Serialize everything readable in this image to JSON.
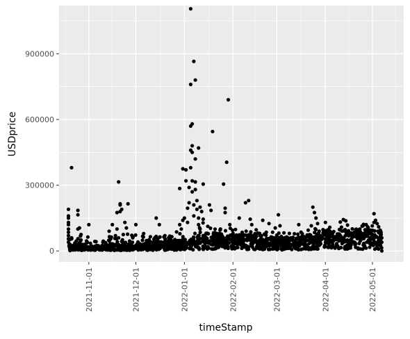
{
  "chart_data": {
    "type": "scatter",
    "xlabel": "timeStamp",
    "ylabel": "USDprice",
    "x_axis_type": "date",
    "xlim": [
      "2021-10-13",
      "2022-05-21"
    ],
    "ylim": [
      -50000,
      1120000
    ],
    "x_ticks": [
      "2021-11-01",
      "2021-12-01",
      "2022-01-01",
      "2022-02-01",
      "2022-03-01",
      "2022-04-01",
      "2022-05-01"
    ],
    "y_ticks": [
      0,
      300000,
      600000,
      900000
    ],
    "y_tick_labels": [
      "0",
      "300000",
      "600000",
      "900000"
    ],
    "grid": true,
    "background": "#ebebeb",
    "point_color": "#000000",
    "series": [
      {
        "points": [
          [
            "2021-10-19",
            190000
          ],
          [
            "2021-10-19",
            160000
          ],
          [
            "2021-10-19",
            150000
          ],
          [
            "2021-10-19",
            130000
          ],
          [
            "2021-10-19",
            120000
          ],
          [
            "2021-10-19",
            100000
          ],
          [
            "2021-10-19",
            85000
          ],
          [
            "2021-10-19",
            70000
          ],
          [
            "2021-10-19",
            55000
          ],
          [
            "2021-10-19",
            40000
          ],
          [
            "2021-10-20",
            30000
          ],
          [
            "2021-10-20",
            20000
          ],
          [
            "2021-10-20",
            10000
          ],
          [
            "2021-10-20",
            5000
          ],
          [
            "2021-10-20",
            2000
          ],
          [
            "2021-10-21",
            380000
          ],
          [
            "2021-10-21",
            60000
          ],
          [
            "2021-10-22",
            25000
          ],
          [
            "2021-10-23",
            12000
          ],
          [
            "2021-10-24",
            45000
          ],
          [
            "2021-10-25",
            185000
          ],
          [
            "2021-10-25",
            165000
          ],
          [
            "2021-10-25",
            100000
          ],
          [
            "2021-10-26",
            105000
          ],
          [
            "2021-10-27",
            75000
          ],
          [
            "2021-10-27",
            50000
          ],
          [
            "2021-10-28",
            30000
          ],
          [
            "2021-10-29",
            15000
          ],
          [
            "2021-10-30",
            8000
          ],
          [
            "2021-10-31",
            40000
          ],
          [
            "2021-11-01",
            120000
          ],
          [
            "2021-11-02",
            35000
          ],
          [
            "2021-11-03",
            20000
          ],
          [
            "2021-11-04",
            10000
          ],
          [
            "2021-11-05",
            5000
          ],
          [
            "2021-11-06",
            25000
          ],
          [
            "2021-11-08",
            15000
          ],
          [
            "2021-11-10",
            40000
          ],
          [
            "2021-11-11",
            8000
          ],
          [
            "2021-11-12",
            22000
          ],
          [
            "2021-11-14",
            90000
          ],
          [
            "2021-11-15",
            55000
          ],
          [
            "2021-11-16",
            120000
          ],
          [
            "2021-11-17",
            30000
          ],
          [
            "2021-11-18",
            70000
          ],
          [
            "2021-11-19",
            175000
          ],
          [
            "2021-11-19",
            100000
          ],
          [
            "2021-11-20",
            315000
          ],
          [
            "2021-11-20",
            60000
          ],
          [
            "2021-11-21",
            210000
          ],
          [
            "2021-11-21",
            215000
          ],
          [
            "2021-11-21",
            180000
          ],
          [
            "2021-11-22",
            190000
          ],
          [
            "2021-11-23",
            75000
          ],
          [
            "2021-11-24",
            130000
          ],
          [
            "2021-11-25",
            105000
          ],
          [
            "2021-11-26",
            215000
          ],
          [
            "2021-11-27",
            45000
          ],
          [
            "2021-11-28",
            25000
          ],
          [
            "2021-11-29",
            60000
          ],
          [
            "2021-12-01",
            120000
          ],
          [
            "2021-12-02",
            20000
          ],
          [
            "2021-12-04",
            10000
          ],
          [
            "2021-12-06",
            30000
          ],
          [
            "2021-12-08",
            15000
          ],
          [
            "2021-12-10",
            40000
          ],
          [
            "2021-12-12",
            25000
          ],
          [
            "2021-12-14",
            150000
          ],
          [
            "2021-12-15",
            45000
          ],
          [
            "2021-12-16",
            120000
          ],
          [
            "2021-12-18",
            30000
          ],
          [
            "2021-12-20",
            10000
          ],
          [
            "2021-12-22",
            50000
          ],
          [
            "2021-12-24",
            65000
          ],
          [
            "2021-12-26",
            20000
          ],
          [
            "2021-12-28",
            35000
          ],
          [
            "2021-12-29",
            285000
          ],
          [
            "2021-12-29",
            120000
          ],
          [
            "2021-12-30",
            100000
          ],
          [
            "2021-12-31",
            140000
          ],
          [
            "2021-12-31",
            375000
          ],
          [
            "2022-01-01",
            150000
          ],
          [
            "2022-01-02",
            370000
          ],
          [
            "2022-01-02",
            320000
          ],
          [
            "2022-01-03",
            195000
          ],
          [
            "2022-01-03",
            130000
          ],
          [
            "2022-01-04",
            290000
          ],
          [
            "2022-01-04",
            220000
          ],
          [
            "2022-01-05",
            460000
          ],
          [
            "2022-01-05",
            380000
          ],
          [
            "2022-01-05",
            570000
          ],
          [
            "2022-01-05",
            760000
          ],
          [
            "2022-01-05",
            1105000
          ],
          [
            "2022-01-06",
            580000
          ],
          [
            "2022-01-06",
            480000
          ],
          [
            "2022-01-06",
            450000
          ],
          [
            "2022-01-06",
            320000
          ],
          [
            "2022-01-06",
            270000
          ],
          [
            "2022-01-07",
            865000
          ],
          [
            "2022-01-07",
            210000
          ],
          [
            "2022-01-07",
            160000
          ],
          [
            "2022-01-08",
            780000
          ],
          [
            "2022-01-08",
            420000
          ],
          [
            "2022-01-08",
            315000
          ],
          [
            "2022-01-08",
            280000
          ],
          [
            "2022-01-09",
            230000
          ],
          [
            "2022-01-09",
            190000
          ],
          [
            "2022-01-10",
            470000
          ],
          [
            "2022-01-10",
            150000
          ],
          [
            "2022-01-10",
            120000
          ],
          [
            "2022-01-11",
            200000
          ],
          [
            "2022-01-11",
            100000
          ],
          [
            "2022-01-12",
            180000
          ],
          [
            "2022-01-13",
            305000
          ],
          [
            "2022-01-13",
            145000
          ],
          [
            "2022-01-15",
            60000
          ],
          [
            "2022-01-17",
            210000
          ],
          [
            "2022-01-18",
            185000
          ],
          [
            "2022-01-19",
            545000
          ],
          [
            "2022-01-20",
            50000
          ],
          [
            "2022-01-22",
            30000
          ],
          [
            "2022-01-24",
            100000
          ],
          [
            "2022-01-26",
            305000
          ],
          [
            "2022-01-27",
            195000
          ],
          [
            "2022-01-27",
            175000
          ],
          [
            "2022-01-28",
            405000
          ],
          [
            "2022-01-29",
            690000
          ],
          [
            "2022-01-30",
            120000
          ],
          [
            "2022-02-01",
            80000
          ],
          [
            "2022-02-03",
            60000
          ],
          [
            "2022-02-05",
            150000
          ],
          [
            "2022-02-07",
            50000
          ],
          [
            "2022-02-09",
            220000
          ],
          [
            "2022-02-11",
            230000
          ],
          [
            "2022-02-12",
            145000
          ],
          [
            "2022-02-13",
            120000
          ],
          [
            "2022-02-15",
            70000
          ],
          [
            "2022-02-18",
            50000
          ],
          [
            "2022-02-20",
            140000
          ],
          [
            "2022-02-22",
            30000
          ],
          [
            "2022-02-24",
            125000
          ],
          [
            "2022-02-26",
            40000
          ],
          [
            "2022-02-28",
            105000
          ],
          [
            "2022-03-02",
            165000
          ],
          [
            "2022-03-03",
            115000
          ],
          [
            "2022-03-06",
            60000
          ],
          [
            "2022-03-09",
            80000
          ],
          [
            "2022-03-12",
            40000
          ],
          [
            "2022-03-15",
            120000
          ],
          [
            "2022-03-18",
            30000
          ],
          [
            "2022-03-21",
            95000
          ],
          [
            "2022-03-23",
            115000
          ],
          [
            "2022-03-24",
            200000
          ],
          [
            "2022-03-25",
            175000
          ],
          [
            "2022-03-26",
            150000
          ],
          [
            "2022-03-27",
            125000
          ],
          [
            "2022-03-28",
            90000
          ],
          [
            "2022-03-30",
            60000
          ],
          [
            "2022-04-01",
            130000
          ],
          [
            "2022-04-03",
            85000
          ],
          [
            "2022-04-06",
            45000
          ],
          [
            "2022-04-09",
            70000
          ],
          [
            "2022-04-12",
            60000
          ],
          [
            "2022-04-15",
            50000
          ],
          [
            "2022-04-18",
            75000
          ],
          [
            "2022-04-21",
            80000
          ],
          [
            "2022-04-23",
            100000
          ],
          [
            "2022-04-25",
            115000
          ],
          [
            "2022-04-27",
            120000
          ],
          [
            "2022-04-28",
            110000
          ],
          [
            "2022-04-30",
            95000
          ],
          [
            "2022-05-02",
            170000
          ],
          [
            "2022-05-02",
            130000
          ],
          [
            "2022-05-03",
            140000
          ],
          [
            "2022-05-04",
            125000
          ],
          [
            "2022-05-05",
            110000
          ],
          [
            "2022-05-06",
            95000
          ],
          [
            "2022-05-06",
            80000
          ],
          [
            "2022-05-07",
            60000
          ],
          [
            "2022-05-07",
            40000
          ],
          [
            "2022-05-07",
            0
          ]
        ],
        "dense_band": [
          [
            "2021-10-19",
            15000
          ],
          [
            "2021-11-01",
            12000
          ],
          [
            "2021-11-15",
            15000
          ],
          [
            "2021-12-01",
            18000
          ],
          [
            "2021-12-15",
            22000
          ],
          [
            "2022-01-01",
            30000
          ],
          [
            "2022-01-15",
            45000
          ],
          [
            "2022-02-01",
            42000
          ],
          [
            "2022-02-15",
            40000
          ],
          [
            "2022-03-01",
            35000
          ],
          [
            "2022-03-15",
            35000
          ],
          [
            "2022-04-01",
            50000
          ],
          [
            "2022-04-15",
            55000
          ],
          [
            "2022-05-07",
            52000
          ]
        ]
      }
    ]
  }
}
